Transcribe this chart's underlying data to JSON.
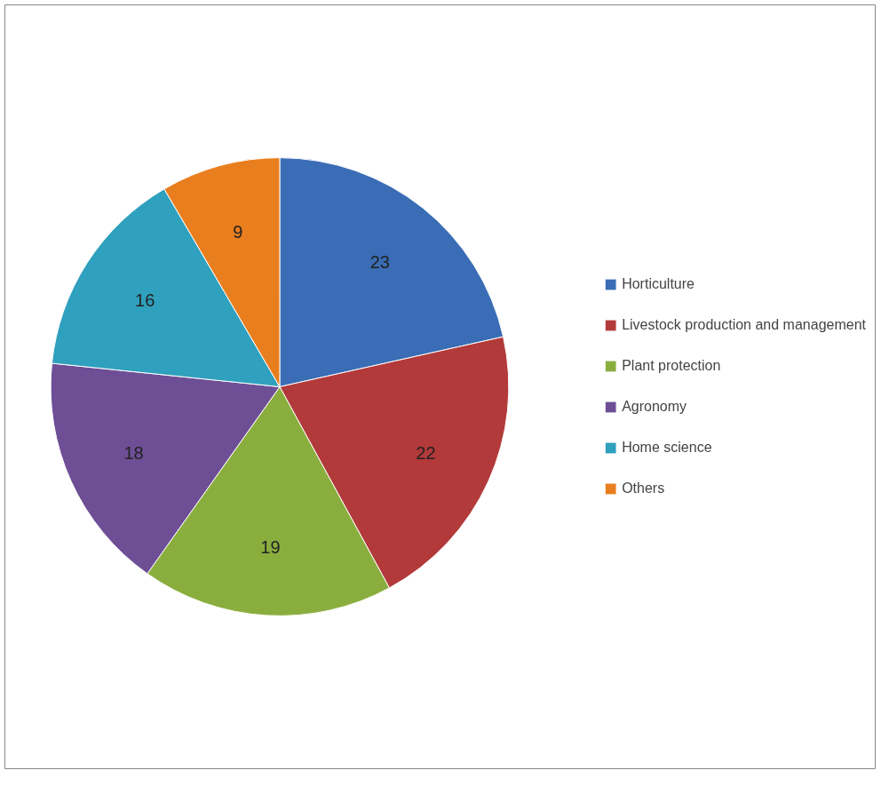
{
  "chart_data": {
    "type": "pie",
    "categories": [
      "Horticulture",
      "Livestock production and management",
      "Plant protection",
      "Agronomy",
      "Home science",
      "Others"
    ],
    "values": [
      23,
      22,
      19,
      18,
      16,
      9
    ],
    "colors": [
      "#3a6db5",
      "#b33a3a",
      "#8aae3e",
      "#6e4f96",
      "#2fa0bd",
      "#e97e1f"
    ],
    "data_labels": true,
    "legend": "right"
  }
}
